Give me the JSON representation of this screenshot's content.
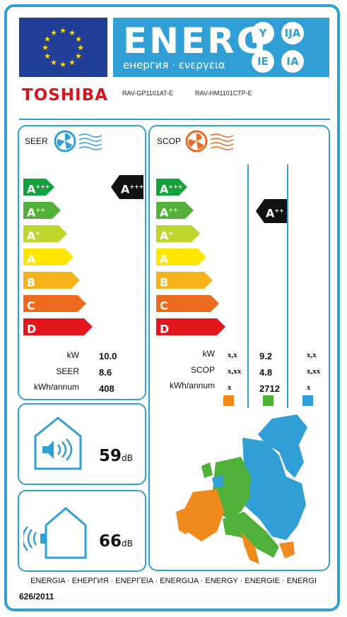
{
  "header": {
    "energy_title": "ENERG",
    "energy_subtitle": "енергия · ενεργεια",
    "lang_codes": [
      "Y",
      "IJA",
      "IE",
      "IA"
    ],
    "colors": {
      "eu_blue": "#213f96",
      "star_yellow": "#ffdd00",
      "label_blue": "#2f9fd6"
    }
  },
  "brand": {
    "name": "TOSHIBA",
    "indoor_model": "RAV-GP1101AT-E",
    "outdoor_model": "RAV-HM1101CTP-E"
  },
  "scale": {
    "classes": [
      {
        "letter": "A",
        "plus": "+++",
        "color": "#11a23b"
      },
      {
        "letter": "A",
        "plus": "++",
        "color": "#53b13a"
      },
      {
        "letter": "A",
        "plus": "+",
        "color": "#bfd52e"
      },
      {
        "letter": "A",
        "plus": "",
        "color": "#ffe600"
      },
      {
        "letter": "B",
        "plus": "",
        "color": "#f7b21a"
      },
      {
        "letter": "C",
        "plus": "",
        "color": "#ec6b1f"
      },
      {
        "letter": "D",
        "plus": "",
        "color": "#e3161e"
      }
    ]
  },
  "seer": {
    "title": "SEER",
    "class_letter": "A",
    "class_plus": "+++",
    "labels": [
      "kW",
      "SEER",
      "kWh/annum"
    ],
    "values": [
      "10.0",
      "8.6",
      "408"
    ]
  },
  "scop": {
    "title": "SCOP",
    "class_letter": "A",
    "class_plus": "++",
    "labels": [
      "kW",
      "SCOP",
      "kWh/annum"
    ],
    "colder": [
      "x,x",
      "x,xx",
      "x"
    ],
    "average": [
      "9.2",
      "4.8",
      "2712"
    ],
    "warmer": [
      "x,x",
      "x,xx",
      "x"
    ],
    "zone_colors": {
      "colder": "#f08a1c",
      "average": "#4fb13a",
      "warmer": "#2f9fd6"
    }
  },
  "noise": {
    "indoor_value": "59",
    "outdoor_value": "66",
    "unit": "dB"
  },
  "footer": {
    "languages": "ENERGIA · ЕНЕРГИЯ · ΕΝΕΡΓΕΙΑ · ENERGIJA · ENERGY · ENERGIE · ENERGI",
    "regulation": "626/2011"
  }
}
